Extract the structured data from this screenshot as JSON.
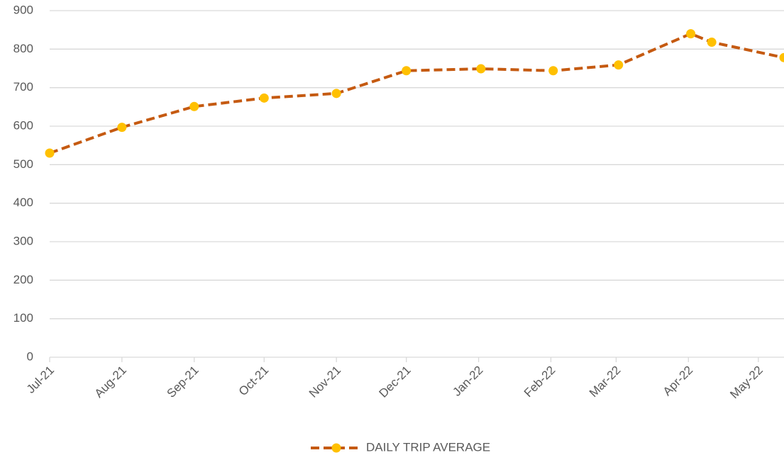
{
  "chart_data": {
    "type": "line",
    "x": [
      0,
      31,
      62,
      92,
      123,
      153,
      185,
      216,
      244,
      275,
      284,
      315
    ],
    "series": [
      {
        "name": "DAILY TRIP AVERAGE",
        "color": "#c55a11",
        "marker_color": "#ffc000",
        "values": [
          530,
          597,
          651,
          673,
          685,
          744,
          749,
          744,
          759,
          840,
          818,
          778
        ]
      }
    ],
    "xlim": [
      0,
      315
    ],
    "xticks": [
      {
        "value": 0,
        "label": "Jul-21"
      },
      {
        "value": 31,
        "label": "Aug-21"
      },
      {
        "value": 62,
        "label": "Sep-21"
      },
      {
        "value": 92,
        "label": "Oct-21"
      },
      {
        "value": 123,
        "label": "Nov-21"
      },
      {
        "value": 153,
        "label": "Dec-21"
      },
      {
        "value": 184,
        "label": "Jan-22"
      },
      {
        "value": 215,
        "label": "Feb-22"
      },
      {
        "value": 243,
        "label": "Mar-22"
      },
      {
        "value": 274,
        "label": "Apr-22"
      },
      {
        "value": 304,
        "label": "May-22"
      }
    ],
    "ylim": [
      0,
      900
    ],
    "yticks": [
      0,
      100,
      200,
      300,
      400,
      500,
      600,
      700,
      800,
      900
    ],
    "grid": true,
    "legend": "bottom"
  }
}
